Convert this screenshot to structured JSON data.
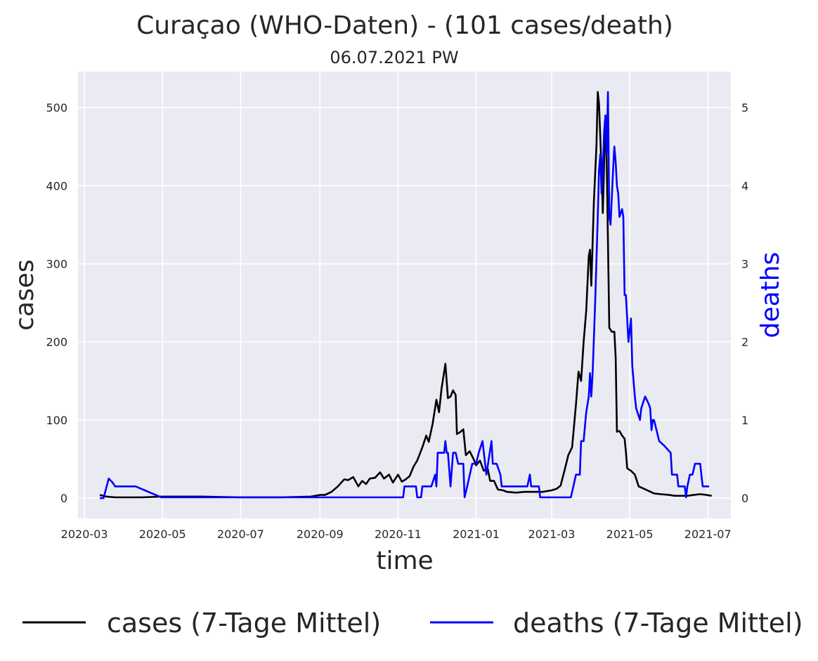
{
  "chart_data": {
    "type": "line",
    "title": "Curaçao (WHO-Daten) - (101 cases/death)",
    "subtitle": "06.07.2021 PW",
    "xlabel": "time",
    "ylabel": "cases",
    "y2label": "deaths",
    "xlim": [
      "2020-02-25",
      "2021-07-19"
    ],
    "ylim": [
      -26,
      546
    ],
    "y2lim": [
      -0.26,
      5.46
    ],
    "x_ticks": [
      "2020-03",
      "2020-05",
      "2020-07",
      "2020-09",
      "2020-11",
      "2021-01",
      "2021-03",
      "2021-05",
      "2021-07"
    ],
    "y_ticks": [
      0,
      100,
      200,
      300,
      400,
      500
    ],
    "y2_ticks": [
      0,
      1,
      2,
      3,
      4,
      5
    ],
    "grid": true,
    "legend_position": "bottom",
    "series": [
      {
        "name": "cases (7-Tage Mittel)",
        "axis": "left",
        "color": "#000000",
        "points": [
          [
            "2020-03-13",
            4
          ],
          [
            "2020-03-18",
            2
          ],
          [
            "2020-03-25",
            1
          ],
          [
            "2020-04-15",
            1
          ],
          [
            "2020-05-01",
            2
          ],
          [
            "2020-06-01",
            2
          ],
          [
            "2020-07-01",
            1
          ],
          [
            "2020-08-01",
            1
          ],
          [
            "2020-08-25",
            2
          ],
          [
            "2020-09-01",
            4
          ],
          [
            "2020-09-05",
            4
          ],
          [
            "2020-09-10",
            8
          ],
          [
            "2020-09-15",
            15
          ],
          [
            "2020-09-20",
            24
          ],
          [
            "2020-09-23",
            23
          ],
          [
            "2020-09-27",
            27
          ],
          [
            "2020-10-01",
            15
          ],
          [
            "2020-10-04",
            22
          ],
          [
            "2020-10-07",
            18
          ],
          [
            "2020-10-10",
            25
          ],
          [
            "2020-10-14",
            26
          ],
          [
            "2020-10-18",
            33
          ],
          [
            "2020-10-21",
            25
          ],
          [
            "2020-10-25",
            30
          ],
          [
            "2020-10-28",
            20
          ],
          [
            "2020-11-01",
            30
          ],
          [
            "2020-11-04",
            21
          ],
          [
            "2020-11-07",
            24
          ],
          [
            "2020-11-10",
            28
          ],
          [
            "2020-11-13",
            40
          ],
          [
            "2020-11-16",
            48
          ],
          [
            "2020-11-20",
            65
          ],
          [
            "2020-11-23",
            80
          ],
          [
            "2020-11-25",
            72
          ],
          [
            "2020-11-28",
            95
          ],
          [
            "2020-12-01",
            126
          ],
          [
            "2020-12-03",
            110
          ],
          [
            "2020-12-05",
            140
          ],
          [
            "2020-12-08",
            172
          ],
          [
            "2020-12-10",
            128
          ],
          [
            "2020-12-12",
            130
          ],
          [
            "2020-12-14",
            138
          ],
          [
            "2020-12-16",
            132
          ],
          [
            "2020-12-17",
            82
          ],
          [
            "2020-12-20",
            85
          ],
          [
            "2020-12-22",
            88
          ],
          [
            "2020-12-24",
            55
          ],
          [
            "2020-12-27",
            60
          ],
          [
            "2020-12-30",
            50
          ],
          [
            "2021-01-01",
            42
          ],
          [
            "2021-01-04",
            48
          ],
          [
            "2021-01-07",
            35
          ],
          [
            "2021-01-10",
            38
          ],
          [
            "2021-01-12",
            22
          ],
          [
            "2021-01-15",
            22
          ],
          [
            "2021-01-18",
            11
          ],
          [
            "2021-01-22",
            10
          ],
          [
            "2021-01-25",
            8
          ],
          [
            "2021-02-01",
            7
          ],
          [
            "2021-02-08",
            8
          ],
          [
            "2021-02-15",
            8
          ],
          [
            "2021-02-22",
            8
          ],
          [
            "2021-03-01",
            10
          ],
          [
            "2021-03-05",
            12
          ],
          [
            "2021-03-08",
            16
          ],
          [
            "2021-03-11",
            35
          ],
          [
            "2021-03-14",
            55
          ],
          [
            "2021-03-17",
            65
          ],
          [
            "2021-03-20",
            120
          ],
          [
            "2021-03-22",
            162
          ],
          [
            "2021-03-24",
            150
          ],
          [
            "2021-03-26",
            200
          ],
          [
            "2021-03-28",
            240
          ],
          [
            "2021-03-30",
            310
          ],
          [
            "2021-03-31",
            318
          ],
          [
            "2021-04-01",
            272
          ],
          [
            "2021-04-03",
            380
          ],
          [
            "2021-04-05",
            450
          ],
          [
            "2021-04-06",
            520
          ],
          [
            "2021-04-07",
            505
          ],
          [
            "2021-04-09",
            420
          ],
          [
            "2021-04-10",
            365
          ],
          [
            "2021-04-12",
            490
          ],
          [
            "2021-04-13",
            430
          ],
          [
            "2021-04-14",
            330
          ],
          [
            "2021-04-15",
            218
          ],
          [
            "2021-04-17",
            213
          ],
          [
            "2021-04-19",
            213
          ],
          [
            "2021-04-20",
            180
          ],
          [
            "2021-04-21",
            85
          ],
          [
            "2021-04-23",
            86
          ],
          [
            "2021-04-25",
            80
          ],
          [
            "2021-04-27",
            76
          ],
          [
            "2021-04-28",
            60
          ],
          [
            "2021-04-29",
            38
          ],
          [
            "2021-05-02",
            35
          ],
          [
            "2021-05-05",
            30
          ],
          [
            "2021-05-08",
            15
          ],
          [
            "2021-05-12",
            12
          ],
          [
            "2021-05-16",
            9
          ],
          [
            "2021-05-20",
            6
          ],
          [
            "2021-05-25",
            5
          ],
          [
            "2021-06-01",
            4
          ],
          [
            "2021-06-05",
            3
          ],
          [
            "2021-06-10",
            3
          ],
          [
            "2021-06-15",
            3
          ],
          [
            "2021-06-20",
            4
          ],
          [
            "2021-06-25",
            5
          ],
          [
            "2021-06-30",
            4
          ],
          [
            "2021-07-04",
            3
          ]
        ]
      },
      {
        "name": "deaths (7-Tage Mittel)",
        "axis": "right",
        "color": "#0000ff",
        "points": [
          [
            "2020-03-13",
            0
          ],
          [
            "2020-03-16",
            0
          ],
          [
            "2020-03-20",
            0.25
          ],
          [
            "2020-03-23",
            0.2
          ],
          [
            "2020-03-25",
            0.15
          ],
          [
            "2020-04-10",
            0.15
          ],
          [
            "2020-04-30",
            0.01
          ],
          [
            "2020-11-05",
            0.01
          ],
          [
            "2020-11-06",
            0.15
          ],
          [
            "2020-11-15",
            0.15
          ],
          [
            "2020-11-16",
            0.01
          ],
          [
            "2020-11-19",
            0.01
          ],
          [
            "2020-11-20",
            0.15
          ],
          [
            "2020-11-27",
            0.15
          ],
          [
            "2020-11-30",
            0.3
          ],
          [
            "2020-12-01",
            0.15
          ],
          [
            "2020-12-02",
            0.58
          ],
          [
            "2020-12-07",
            0.58
          ],
          [
            "2020-12-08",
            0.73
          ],
          [
            "2020-12-09",
            0.58
          ],
          [
            "2020-12-10",
            0.58
          ],
          [
            "2020-12-12",
            0.15
          ],
          [
            "2020-12-14",
            0.58
          ],
          [
            "2020-12-16",
            0.58
          ],
          [
            "2020-12-18",
            0.44
          ],
          [
            "2020-12-22",
            0.44
          ],
          [
            "2020-12-23",
            0.01
          ],
          [
            "2020-12-25",
            0.15
          ],
          [
            "2020-12-29",
            0.44
          ],
          [
            "2021-01-01",
            0.44
          ],
          [
            "2021-01-03",
            0.58
          ],
          [
            "2021-01-06",
            0.73
          ],
          [
            "2021-01-09",
            0.3
          ],
          [
            "2021-01-13",
            0.73
          ],
          [
            "2021-01-14",
            0.44
          ],
          [
            "2021-01-17",
            0.44
          ],
          [
            "2021-01-20",
            0.3
          ],
          [
            "2021-01-21",
            0.15
          ],
          [
            "2021-02-10",
            0.15
          ],
          [
            "2021-02-12",
            0.3
          ],
          [
            "2021-02-13",
            0.15
          ],
          [
            "2021-02-19",
            0.15
          ],
          [
            "2021-02-20",
            0.01
          ],
          [
            "2021-03-16",
            0.01
          ],
          [
            "2021-03-18",
            0.15
          ],
          [
            "2021-03-20",
            0.3
          ],
          [
            "2021-03-23",
            0.3
          ],
          [
            "2021-03-24",
            0.73
          ],
          [
            "2021-03-26",
            0.73
          ],
          [
            "2021-03-28",
            1.1
          ],
          [
            "2021-03-30",
            1.3
          ],
          [
            "2021-03-31",
            1.6
          ],
          [
            "2021-04-01",
            1.3
          ],
          [
            "2021-04-02",
            1.6
          ],
          [
            "2021-04-04",
            2.5
          ],
          [
            "2021-04-06",
            3.6
          ],
          [
            "2021-04-07",
            4.2
          ],
          [
            "2021-04-08",
            4.4
          ],
          [
            "2021-04-09",
            3.9
          ],
          [
            "2021-04-10",
            4.2
          ],
          [
            "2021-04-11",
            4.7
          ],
          [
            "2021-04-12",
            4.9
          ],
          [
            "2021-04-13",
            4.4
          ],
          [
            "2021-04-14",
            5.2
          ],
          [
            "2021-04-15",
            3.6
          ],
          [
            "2021-04-16",
            3.5
          ],
          [
            "2021-04-18",
            4.2
          ],
          [
            "2021-04-19",
            4.5
          ],
          [
            "2021-04-20",
            4.3
          ],
          [
            "2021-04-21",
            4.0
          ],
          [
            "2021-04-22",
            3.9
          ],
          [
            "2021-04-23",
            3.6
          ],
          [
            "2021-04-25",
            3.7
          ],
          [
            "2021-04-26",
            3.6
          ],
          [
            "2021-04-27",
            2.6
          ],
          [
            "2021-04-28",
            2.6
          ],
          [
            "2021-04-30",
            2.0
          ],
          [
            "2021-05-02",
            2.3
          ],
          [
            "2021-05-03",
            1.7
          ],
          [
            "2021-05-05",
            1.3
          ],
          [
            "2021-05-06",
            1.15
          ],
          [
            "2021-05-09",
            1.0
          ],
          [
            "2021-05-10",
            1.15
          ],
          [
            "2021-05-13",
            1.3
          ],
          [
            "2021-05-16",
            1.2
          ],
          [
            "2021-05-17",
            1.15
          ],
          [
            "2021-05-18",
            0.87
          ],
          [
            "2021-05-19",
            1.0
          ],
          [
            "2021-05-20",
            1.0
          ],
          [
            "2021-05-24",
            0.73
          ],
          [
            "2021-05-28",
            0.67
          ],
          [
            "2021-06-02",
            0.58
          ],
          [
            "2021-06-03",
            0.3
          ],
          [
            "2021-06-07",
            0.3
          ],
          [
            "2021-06-08",
            0.15
          ],
          [
            "2021-06-13",
            0.15
          ],
          [
            "2021-06-14",
            0.01
          ],
          [
            "2021-06-15",
            0.15
          ],
          [
            "2021-06-17",
            0.3
          ],
          [
            "2021-06-19",
            0.3
          ],
          [
            "2021-06-21",
            0.44
          ],
          [
            "2021-06-25",
            0.44
          ],
          [
            "2021-06-27",
            0.15
          ],
          [
            "2021-07-02",
            0.15
          ]
        ]
      }
    ]
  }
}
